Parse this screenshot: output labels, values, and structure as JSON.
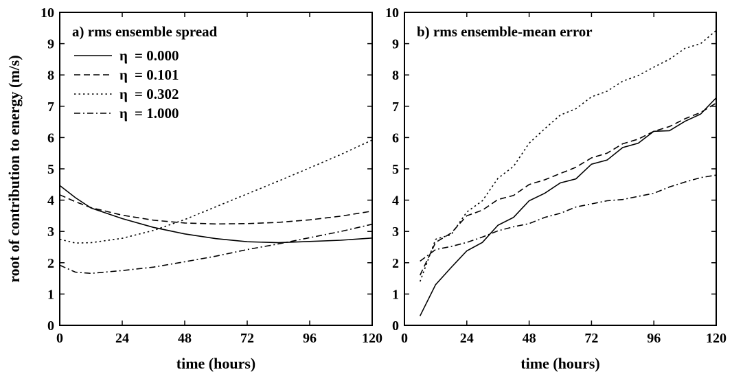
{
  "shared_ylabel": "root of contribution to energy (m/s)",
  "legend_symbol": "η",
  "legend": [
    {
      "label": "= 0.000",
      "dash": "solid"
    },
    {
      "label": "= 0.101",
      "dash": "dashed"
    },
    {
      "label": "= 0.302",
      "dash": "dotted"
    },
    {
      "label": "= 1.000",
      "dash": "dashdot"
    }
  ],
  "chart_data": [
    {
      "type": "line",
      "title": "a) rms ensemble spread",
      "xlabel": "time (hours)",
      "ylabel": "root of contribution to energy (m/s)",
      "xlim": [
        0,
        120
      ],
      "ylim": [
        0,
        10
      ],
      "xticks": [
        "0",
        "24",
        "48",
        "72",
        "96",
        "120"
      ],
      "yticks": [
        "0",
        "1",
        "2",
        "3",
        "4",
        "5",
        "6",
        "7",
        "8",
        "9",
        "10"
      ],
      "series": [
        {
          "name": "η = 0.000",
          "dash": "solid",
          "x": [
            0,
            6,
            12,
            24,
            36,
            48,
            60,
            72,
            84,
            96,
            108,
            120
          ],
          "y": [
            4.47,
            4.08,
            3.75,
            3.41,
            3.13,
            2.92,
            2.77,
            2.67,
            2.64,
            2.68,
            2.72,
            2.79
          ]
        },
        {
          "name": "η = 0.101",
          "dash": "dashed",
          "x": [
            0,
            6,
            12,
            24,
            36,
            48,
            60,
            72,
            84,
            96,
            108,
            120
          ],
          "y": [
            4.17,
            3.95,
            3.76,
            3.52,
            3.36,
            3.27,
            3.24,
            3.25,
            3.29,
            3.37,
            3.49,
            3.65
          ]
        },
        {
          "name": "η = 0.302",
          "dash": "dotted",
          "x": [
            0,
            6,
            12,
            24,
            36,
            48,
            60,
            72,
            84,
            96,
            108,
            120
          ],
          "y": [
            2.75,
            2.63,
            2.64,
            2.78,
            3.03,
            3.38,
            3.79,
            4.2,
            4.61,
            5.03,
            5.46,
            5.92
          ]
        },
        {
          "name": "η = 1.000",
          "dash": "dashdot",
          "x": [
            0,
            6,
            12,
            24,
            36,
            48,
            60,
            72,
            84,
            96,
            108,
            120
          ],
          "y": [
            1.92,
            1.7,
            1.66,
            1.75,
            1.86,
            2.03,
            2.21,
            2.42,
            2.6,
            2.8,
            3.0,
            3.23
          ]
        }
      ]
    },
    {
      "type": "line",
      "title": "b) rms ensemble-mean error",
      "xlabel": "time (hours)",
      "ylabel": "",
      "xlim": [
        0,
        120
      ],
      "ylim": [
        0,
        10
      ],
      "xticks": [
        "0",
        "24",
        "48",
        "72",
        "96",
        "120"
      ],
      "yticks": [
        "0",
        "1",
        "2",
        "3",
        "4",
        "5",
        "6",
        "7",
        "8",
        "9",
        "10"
      ],
      "series": [
        {
          "name": "η = 0.000",
          "dash": "solid",
          "x": [
            6,
            12,
            18,
            24,
            30,
            36,
            42,
            48,
            54,
            60,
            66,
            72,
            78,
            84,
            90,
            96,
            102,
            108,
            114,
            120
          ],
          "y": [
            0.3,
            1.3,
            1.85,
            2.38,
            2.65,
            3.2,
            3.45,
            3.98,
            4.22,
            4.55,
            4.68,
            5.15,
            5.28,
            5.68,
            5.82,
            6.2,
            6.22,
            6.52,
            6.75,
            7.27
          ]
        },
        {
          "name": "η = 0.101",
          "dash": "dashed",
          "x": [
            6,
            12,
            18,
            24,
            30,
            36,
            42,
            48,
            54,
            60,
            66,
            72,
            78,
            84,
            90,
            96,
            102,
            108,
            114,
            120
          ],
          "y": [
            1.6,
            2.65,
            2.95,
            3.5,
            3.68,
            4.02,
            4.15,
            4.5,
            4.65,
            4.85,
            5.05,
            5.35,
            5.5,
            5.8,
            5.95,
            6.2,
            6.35,
            6.6,
            6.8,
            7.1
          ]
        },
        {
          "name": "η = 0.302",
          "dash": "dotted",
          "x": [
            6,
            12,
            18,
            24,
            30,
            36,
            42,
            48,
            54,
            60,
            66,
            72,
            78,
            84,
            90,
            96,
            102,
            108,
            114,
            120
          ],
          "y": [
            1.4,
            2.75,
            2.9,
            3.62,
            3.98,
            4.7,
            5.08,
            5.82,
            6.28,
            6.72,
            6.92,
            7.3,
            7.48,
            7.8,
            7.98,
            8.25,
            8.5,
            8.85,
            9.0,
            9.42
          ]
        },
        {
          "name": "η = 1.000",
          "dash": "dashdot",
          "x": [
            6,
            12,
            18,
            24,
            30,
            36,
            42,
            48,
            54,
            60,
            66,
            72,
            78,
            84,
            90,
            96,
            102,
            108,
            114,
            120
          ],
          "y": [
            2.05,
            2.42,
            2.52,
            2.65,
            2.82,
            3.02,
            3.15,
            3.25,
            3.45,
            3.58,
            3.78,
            3.88,
            3.98,
            4.02,
            4.12,
            4.22,
            4.42,
            4.58,
            4.72,
            4.8
          ]
        }
      ]
    }
  ]
}
